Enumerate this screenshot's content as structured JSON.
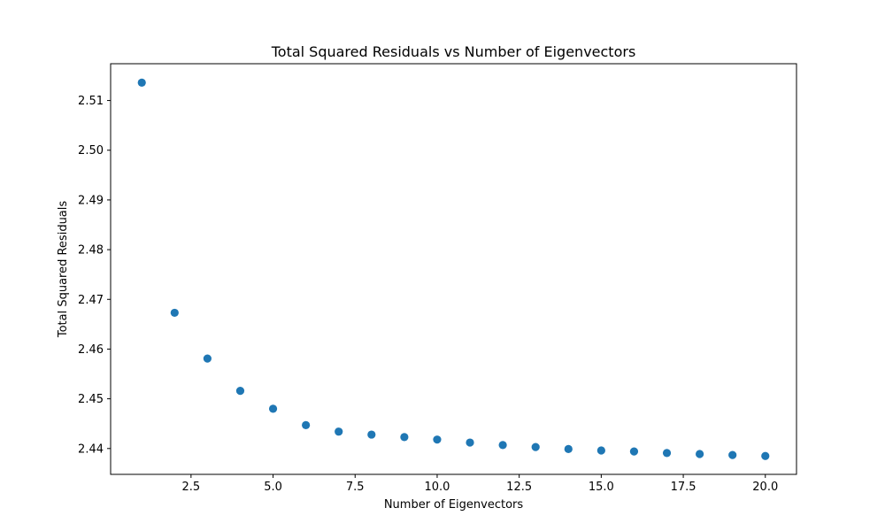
{
  "chart_data": {
    "type": "scatter",
    "title": "Total Squared Residuals vs Number of Eigenvectors",
    "xlabel": "Number of Eigenvectors",
    "ylabel": "Total Squared Residuals",
    "xlim": [
      0.05,
      20.95
    ],
    "ylim": [
      2.4348,
      2.5174
    ],
    "xticks": [
      2.5,
      5.0,
      7.5,
      10.0,
      12.5,
      15.0,
      17.5,
      20.0
    ],
    "xtick_labels": [
      "2.5",
      "5.0",
      "7.5",
      "10.0",
      "12.5",
      "15.0",
      "17.5",
      "20.0"
    ],
    "yticks": [
      2.44,
      2.45,
      2.46,
      2.47,
      2.48,
      2.49,
      2.5,
      2.51
    ],
    "ytick_labels": [
      "2.44",
      "2.45",
      "2.46",
      "2.47",
      "2.48",
      "2.49",
      "2.50",
      "2.51"
    ],
    "grid": false,
    "marker_color": "#1f77b4",
    "x": [
      1,
      2,
      3,
      4,
      5,
      6,
      7,
      8,
      9,
      10,
      11,
      12,
      13,
      14,
      15,
      16,
      17,
      18,
      19,
      20
    ],
    "y": [
      2.5136,
      2.4673,
      2.4581,
      2.4516,
      2.448,
      2.4447,
      2.4434,
      2.4428,
      2.4423,
      2.4418,
      2.4412,
      2.4407,
      2.4403,
      2.4399,
      2.4396,
      2.4394,
      2.4391,
      2.4389,
      2.4387,
      2.4385
    ]
  }
}
